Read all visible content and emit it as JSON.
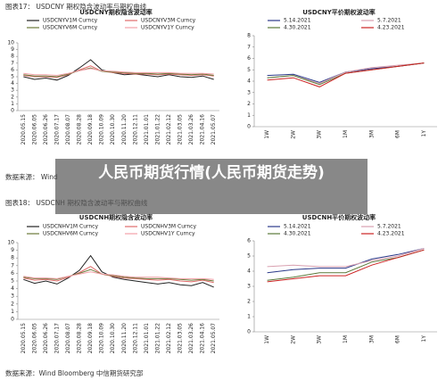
{
  "figures": [
    {
      "caption": "图表17： USDCNY 期权隐含波动率与期权曲线",
      "source": "数据来源： Wind"
    },
    {
      "caption": "图表18： USDCNH 期权隐含波动率与期权曲线",
      "source": "数据来源：Wind  Bloomberg   中信期货研究部"
    }
  ],
  "overlay_title": "人民币期货行情(人民币期货走势)",
  "chart_data": [
    {
      "type": "line",
      "title": "USDCNY期权隐含波动率",
      "categories": [
        "2020.05.15",
        "2020.06.05",
        "2020.06.26",
        "2020.07.17",
        "2020.08.07",
        "2020.08.28",
        "2020.09.18",
        "2020.10.09",
        "2020.10.30",
        "2020.11.20",
        "2020.12.11",
        "2021.01.01",
        "2021.01.22",
        "2021.02.12",
        "2021.03.05",
        "2021.03.26",
        "2021.04.16",
        "2021.05.07"
      ],
      "series": [
        {
          "name": "USDCNYV1M Curncy",
          "color": "#222222",
          "values": [
            5.0,
            4.6,
            4.8,
            4.5,
            5.2,
            6.3,
            7.5,
            6.0,
            5.6,
            5.3,
            5.4,
            5.2,
            5.0,
            5.3,
            5.0,
            4.9,
            5.1,
            4.6
          ]
        },
        {
          "name": "USDCNYV3M Curncy",
          "color": "#e06a6a",
          "values": [
            5.2,
            5.0,
            5.0,
            4.9,
            5.3,
            6.0,
            6.6,
            5.8,
            5.6,
            5.5,
            5.4,
            5.4,
            5.3,
            5.4,
            5.3,
            5.2,
            5.3,
            5.1
          ]
        },
        {
          "name": "USDCNYV6M Curncy",
          "color": "#6b7a3a",
          "values": [
            5.3,
            5.1,
            5.1,
            5.0,
            5.4,
            5.9,
            6.3,
            5.8,
            5.7,
            5.6,
            5.5,
            5.5,
            5.4,
            5.5,
            5.4,
            5.3,
            5.4,
            5.2
          ]
        },
        {
          "name": "USDCNYV1Y Curncy",
          "color": "#f2a0a8",
          "values": [
            5.5,
            5.3,
            5.3,
            5.2,
            5.5,
            5.9,
            6.2,
            5.9,
            5.8,
            5.7,
            5.6,
            5.6,
            5.6,
            5.6,
            5.5,
            5.5,
            5.5,
            5.4
          ]
        }
      ],
      "ylim": [
        0,
        10
      ],
      "yticks": [
        0,
        1,
        2,
        3,
        4,
        5,
        6,
        7,
        8,
        9,
        10
      ]
    },
    {
      "type": "line",
      "title": "USDCNY平价期权波动率",
      "categories": [
        "1W",
        "2W",
        "3W",
        "1M",
        "3M",
        "6M",
        "1Y"
      ],
      "series": [
        {
          "name": "5.14.2021",
          "color": "#2b3a8a",
          "values": [
            4.5,
            4.6,
            3.9,
            4.8,
            5.1,
            5.3,
            5.6
          ]
        },
        {
          "name": "5.7.2021",
          "color": "#d9a0b0",
          "values": [
            4.3,
            4.5,
            3.8,
            4.8,
            5.2,
            5.4,
            5.6
          ]
        },
        {
          "name": "4.30.2021",
          "color": "#5a7a3a",
          "values": [
            4.3,
            4.5,
            3.7,
            4.7,
            5.0,
            5.3,
            5.6
          ]
        },
        {
          "name": "4.23.2021",
          "color": "#cc2222",
          "values": [
            4.1,
            4.3,
            3.5,
            4.7,
            5.0,
            5.3,
            5.6
          ]
        }
      ],
      "ylim": [
        0,
        8
      ],
      "yticks": [
        0,
        1,
        2,
        3,
        4,
        5,
        6,
        7,
        8
      ]
    },
    {
      "type": "line",
      "title": "USDCNH期权隐含波动率",
      "categories": [
        "2020.05.15",
        "2020.06.05",
        "2020.06.26",
        "2020.07.17",
        "2020.08.07",
        "2020.08.28",
        "2020.09.18",
        "2020.10.09",
        "2020.10.30",
        "2020.11.20",
        "2020.12.11",
        "2021.01.01",
        "2021.01.22",
        "2021.02.12",
        "2021.03.05",
        "2021.03.26",
        "2021.04.16",
        "2021.05.07"
      ],
      "series": [
        {
          "name": "USDCNHV1M Curncy",
          "color": "#222222",
          "values": [
            5.2,
            4.7,
            5.0,
            4.6,
            5.4,
            6.4,
            8.3,
            6.2,
            5.5,
            5.2,
            5.0,
            4.8,
            4.6,
            4.8,
            4.5,
            4.4,
            4.8,
            4.2
          ]
        },
        {
          "name": "USDCNHV3M Curncy",
          "color": "#e06a6a",
          "values": [
            5.4,
            5.1,
            5.2,
            5.0,
            5.5,
            6.1,
            6.9,
            5.9,
            5.6,
            5.4,
            5.3,
            5.2,
            5.1,
            5.2,
            5.0,
            4.9,
            5.1,
            4.8
          ]
        },
        {
          "name": "USDCNHV6M Curncy",
          "color": "#6b7a3a",
          "values": [
            5.5,
            5.3,
            5.3,
            5.2,
            5.6,
            6.0,
            6.5,
            5.9,
            5.7,
            5.5,
            5.4,
            5.3,
            5.3,
            5.3,
            5.2,
            5.1,
            5.2,
            5.0
          ]
        },
        {
          "name": "USDCNHV1Y Curncy",
          "color": "#f2a0a8",
          "values": [
            5.6,
            5.4,
            5.4,
            5.3,
            5.6,
            5.9,
            6.2,
            5.9,
            5.8,
            5.6,
            5.5,
            5.5,
            5.5,
            5.4,
            5.3,
            5.3,
            5.3,
            5.2
          ]
        }
      ],
      "ylim": [
        0,
        10
      ],
      "yticks": [
        0,
        1,
        2,
        3,
        4,
        5,
        6,
        7,
        8,
        9,
        10
      ]
    },
    {
      "type": "line",
      "title": "USDCNH平价期权波动率",
      "categories": [
        "1W",
        "2W",
        "3W",
        "1M",
        "3M",
        "6M",
        "1Y"
      ],
      "series": [
        {
          "name": "5.14.2021",
          "color": "#2b3a8a",
          "values": [
            3.9,
            4.1,
            4.2,
            4.2,
            4.8,
            5.1,
            5.5
          ]
        },
        {
          "name": "5.7.2021",
          "color": "#d9a0b0",
          "values": [
            4.3,
            4.4,
            4.3,
            4.3,
            4.7,
            5.0,
            5.5
          ]
        },
        {
          "name": "4.30.2021",
          "color": "#5a7a3a",
          "values": [
            3.4,
            3.6,
            3.9,
            3.9,
            4.6,
            4.9,
            5.4
          ]
        },
        {
          "name": "4.23.2021",
          "color": "#cc2222",
          "values": [
            3.3,
            3.5,
            3.7,
            3.7,
            4.4,
            4.9,
            5.4
          ]
        }
      ],
      "ylim": [
        0,
        6
      ],
      "yticks": [
        0,
        1,
        2,
        3,
        4,
        5,
        6
      ]
    }
  ]
}
